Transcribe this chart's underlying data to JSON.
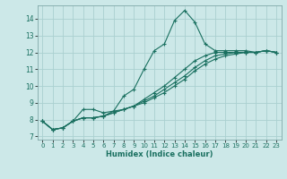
{
  "title": "",
  "xlabel": "Humidex (Indice chaleur)",
  "ylabel": "",
  "background_color": "#cce8e8",
  "grid_color": "#aad0d0",
  "line_color": "#1a7060",
  "xlim": [
    -0.5,
    23.5
  ],
  "ylim": [
    6.8,
    14.8
  ],
  "xticks": [
    0,
    1,
    2,
    3,
    4,
    5,
    6,
    7,
    8,
    9,
    10,
    11,
    12,
    13,
    14,
    15,
    16,
    17,
    18,
    19,
    20,
    21,
    22,
    23
  ],
  "yticks": [
    7,
    8,
    9,
    10,
    11,
    12,
    13,
    14
  ],
  "series": [
    [
      7.9,
      7.4,
      7.5,
      7.9,
      8.6,
      8.6,
      8.4,
      8.5,
      9.4,
      9.8,
      11.0,
      12.1,
      12.5,
      13.9,
      14.5,
      13.8,
      12.5,
      12.1,
      12.1,
      12.1,
      12.1,
      12.0,
      12.1,
      12.0
    ],
    [
      7.9,
      7.4,
      7.5,
      7.9,
      8.1,
      8.1,
      8.2,
      8.5,
      8.6,
      8.8,
      9.2,
      9.6,
      10.0,
      10.5,
      11.0,
      11.5,
      11.8,
      12.0,
      12.0,
      12.0,
      12.0,
      12.0,
      12.1,
      12.0
    ],
    [
      7.9,
      7.4,
      7.5,
      7.9,
      8.1,
      8.1,
      8.2,
      8.4,
      8.6,
      8.8,
      9.1,
      9.4,
      9.8,
      10.2,
      10.6,
      11.1,
      11.5,
      11.8,
      11.9,
      12.0,
      12.0,
      12.0,
      12.1,
      12.0
    ],
    [
      7.9,
      7.4,
      7.5,
      7.9,
      8.1,
      8.1,
      8.2,
      8.4,
      8.6,
      8.8,
      9.0,
      9.3,
      9.6,
      10.0,
      10.4,
      10.9,
      11.3,
      11.6,
      11.8,
      11.9,
      12.0,
      12.0,
      12.1,
      12.0
    ]
  ]
}
